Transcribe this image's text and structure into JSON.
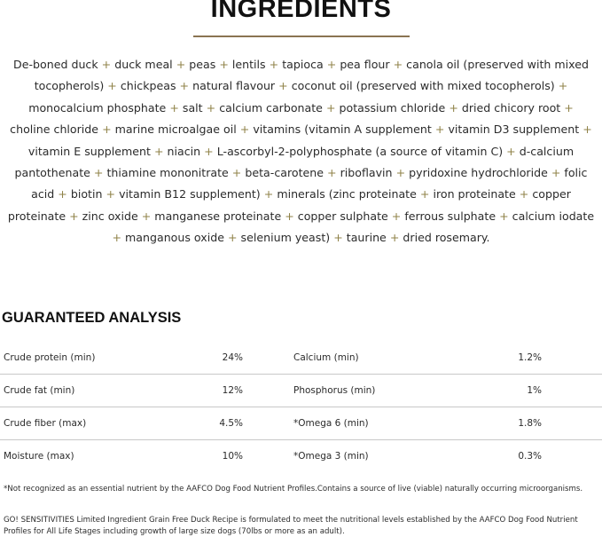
{
  "ingredients": {
    "title": "INGREDIENTS",
    "separator": "+",
    "items": [
      "De-boned duck",
      "duck meal",
      "peas",
      "lentils",
      "tapioca",
      "pea flour",
      "canola oil (preserved with mixed tocopherols)",
      "chickpeas",
      "natural flavour",
      "coconut oil (preserved with mixed tocopherols)",
      "monocalcium phosphate",
      "salt",
      "calcium carbonate",
      "potassium chloride",
      "dried chicory root",
      "choline chloride",
      "marine microalgae oil",
      "vitamins (vitamin A supplement",
      "vitamin D3 supplement",
      "vitamin E supplement",
      "niacin",
      "L-ascorbyl-2-polyphosphate (a source of vitamin C)",
      "d-calcium pantothenate",
      "thiamine mononitrate",
      "beta-carotene",
      "riboflavin",
      "pyridoxine hydrochloride",
      "folic acid",
      "biotin",
      "vitamin B12 supplement)",
      "minerals (zinc proteinate",
      "iron proteinate",
      "copper proteinate",
      "zinc oxide",
      "manganese proteinate",
      "copper sulphate",
      "ferrous sulphate",
      "calcium iodate",
      "manganous oxide",
      "selenium yeast)",
      "taurine",
      "dried rosemary."
    ]
  },
  "analysis": {
    "title": "GUARANTEED ANALYSIS",
    "rows": [
      [
        "Crude protein (min)",
        "24%",
        "Calcium (min)",
        "1.2%"
      ],
      [
        "Crude fat (min)",
        "12%",
        "Phosphorus (min)",
        "1%"
      ],
      [
        "Crude fiber (max)",
        "4.5%",
        "*Omega 6 (min)",
        "1.8%"
      ],
      [
        "Moisture (max)",
        "10%",
        "*Omega 3 (min)",
        "0.3%"
      ]
    ]
  },
  "footnotes": [
    "*Not recognized as an essential nutrient by the AAFCO Dog Food Nutrient Profiles.Contains a source of live (viable) naturally occurring microorganisms.",
    "GO! SENSITIVITIES Limited Ingredient Grain Free Duck Recipe is formulated to meet the nutritional levels established by the AAFCO Dog Food Nutrient Profiles for All Life Stages including growth of large size dogs (70lbs or more as an adult)."
  ]
}
